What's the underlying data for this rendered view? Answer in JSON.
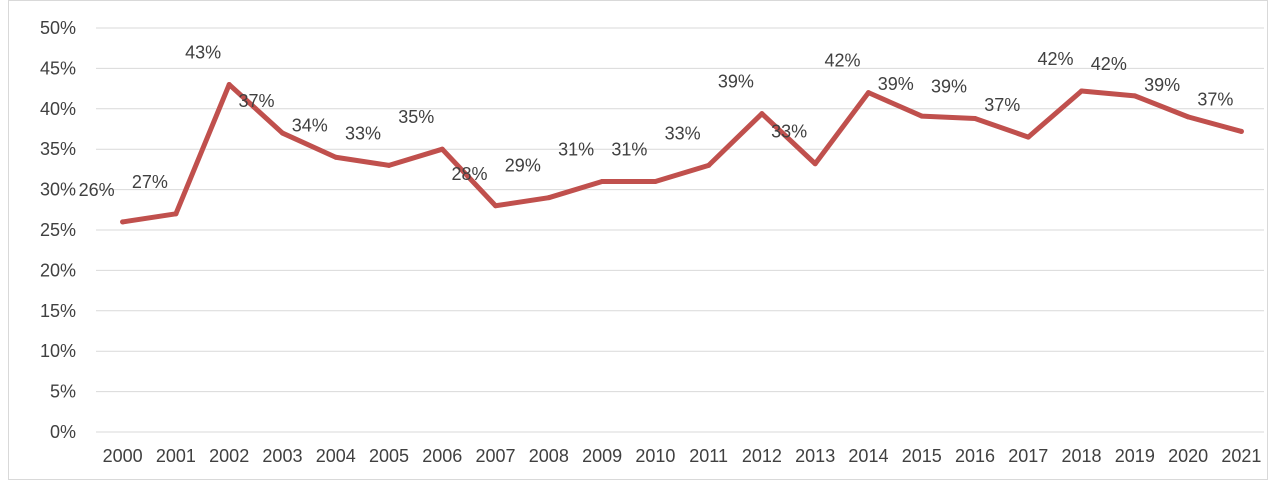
{
  "chart_data": {
    "type": "line",
    "title": "",
    "xlabel": "",
    "ylabel": "",
    "categories": [
      "2000",
      "2001",
      "2002",
      "2003",
      "2004",
      "2005",
      "2006",
      "2007",
      "2008",
      "2009",
      "2010",
      "2011",
      "2012",
      "2013",
      "2014",
      "2015",
      "2016",
      "2017",
      "2018",
      "2019",
      "2020",
      "2021"
    ],
    "series": [
      {
        "values": [
          26,
          27,
          43,
          37,
          34,
          33,
          35,
          28,
          29,
          31,
          31,
          33,
          39.4,
          33.2,
          42,
          39.1,
          38.8,
          36.5,
          42.2,
          41.6,
          39,
          37.2
        ],
        "labels": [
          "26%",
          "27%",
          "43%",
          "37%",
          "34%",
          "33%",
          "35%",
          "28%",
          "29%",
          "31%",
          "31%",
          "33%",
          "39%",
          "33%",
          "42%",
          "39%",
          "39%",
          "37%",
          "42%",
          "42%",
          "39%",
          "37%"
        ],
        "color": "#c0504d"
      }
    ],
    "ylim": [
      0,
      50
    ],
    "y_ticks": [
      0,
      5,
      10,
      15,
      20,
      25,
      30,
      35,
      40,
      45,
      50
    ],
    "y_tick_labels": [
      "0%",
      "5%",
      "10%",
      "15%",
      "20%",
      "25%",
      "30%",
      "35%",
      "40%",
      "45%",
      "50%"
    ],
    "grid": true,
    "legend": "none"
  }
}
